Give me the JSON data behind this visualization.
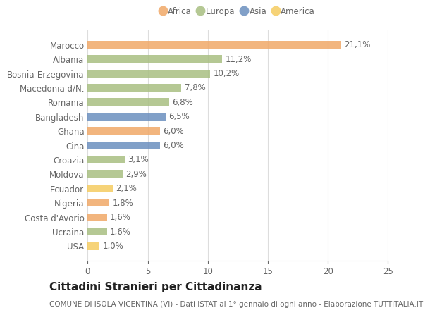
{
  "categories": [
    "Marocco",
    "Albania",
    "Bosnia-Erzegovina",
    "Macedonia d/N.",
    "Romania",
    "Bangladesh",
    "Ghana",
    "Cina",
    "Croazia",
    "Moldova",
    "Ecuador",
    "Nigeria",
    "Costa d'Avorio",
    "Ucraina",
    "USA"
  ],
  "values": [
    21.1,
    11.2,
    10.2,
    7.8,
    6.8,
    6.5,
    6.0,
    6.0,
    3.1,
    2.9,
    2.1,
    1.8,
    1.6,
    1.6,
    1.0
  ],
  "continents": [
    "Africa",
    "Europa",
    "Europa",
    "Europa",
    "Europa",
    "Asia",
    "Africa",
    "Asia",
    "Europa",
    "Europa",
    "America",
    "Africa",
    "Africa",
    "Europa",
    "America"
  ],
  "labels": [
    "21,1%",
    "11,2%",
    "10,2%",
    "7,8%",
    "6,8%",
    "6,5%",
    "6,0%",
    "6,0%",
    "3,1%",
    "2,9%",
    "2,1%",
    "1,8%",
    "1,6%",
    "1,6%",
    "1,0%"
  ],
  "continent_colors": {
    "Africa": "#F0A868",
    "Europa": "#A8BF82",
    "Asia": "#6B8FBF",
    "America": "#F5CC60"
  },
  "legend_order": [
    "Africa",
    "Europa",
    "Asia",
    "America"
  ],
  "xlim": [
    0,
    25
  ],
  "xticks": [
    0,
    5,
    10,
    15,
    20,
    25
  ],
  "title": "Cittadini Stranieri per Cittadinanza",
  "subtitle": "COMUNE DI ISOLA VICENTINA (VI) - Dati ISTAT al 1° gennaio di ogni anno - Elaborazione TUTTITALIA.IT",
  "background_color": "#ffffff",
  "bar_alpha": 0.85,
  "grid_color": "#dddddd",
  "text_color": "#666666",
  "label_fontsize": 8.5,
  "tick_fontsize": 8.5,
  "title_fontsize": 11,
  "subtitle_fontsize": 7.5
}
